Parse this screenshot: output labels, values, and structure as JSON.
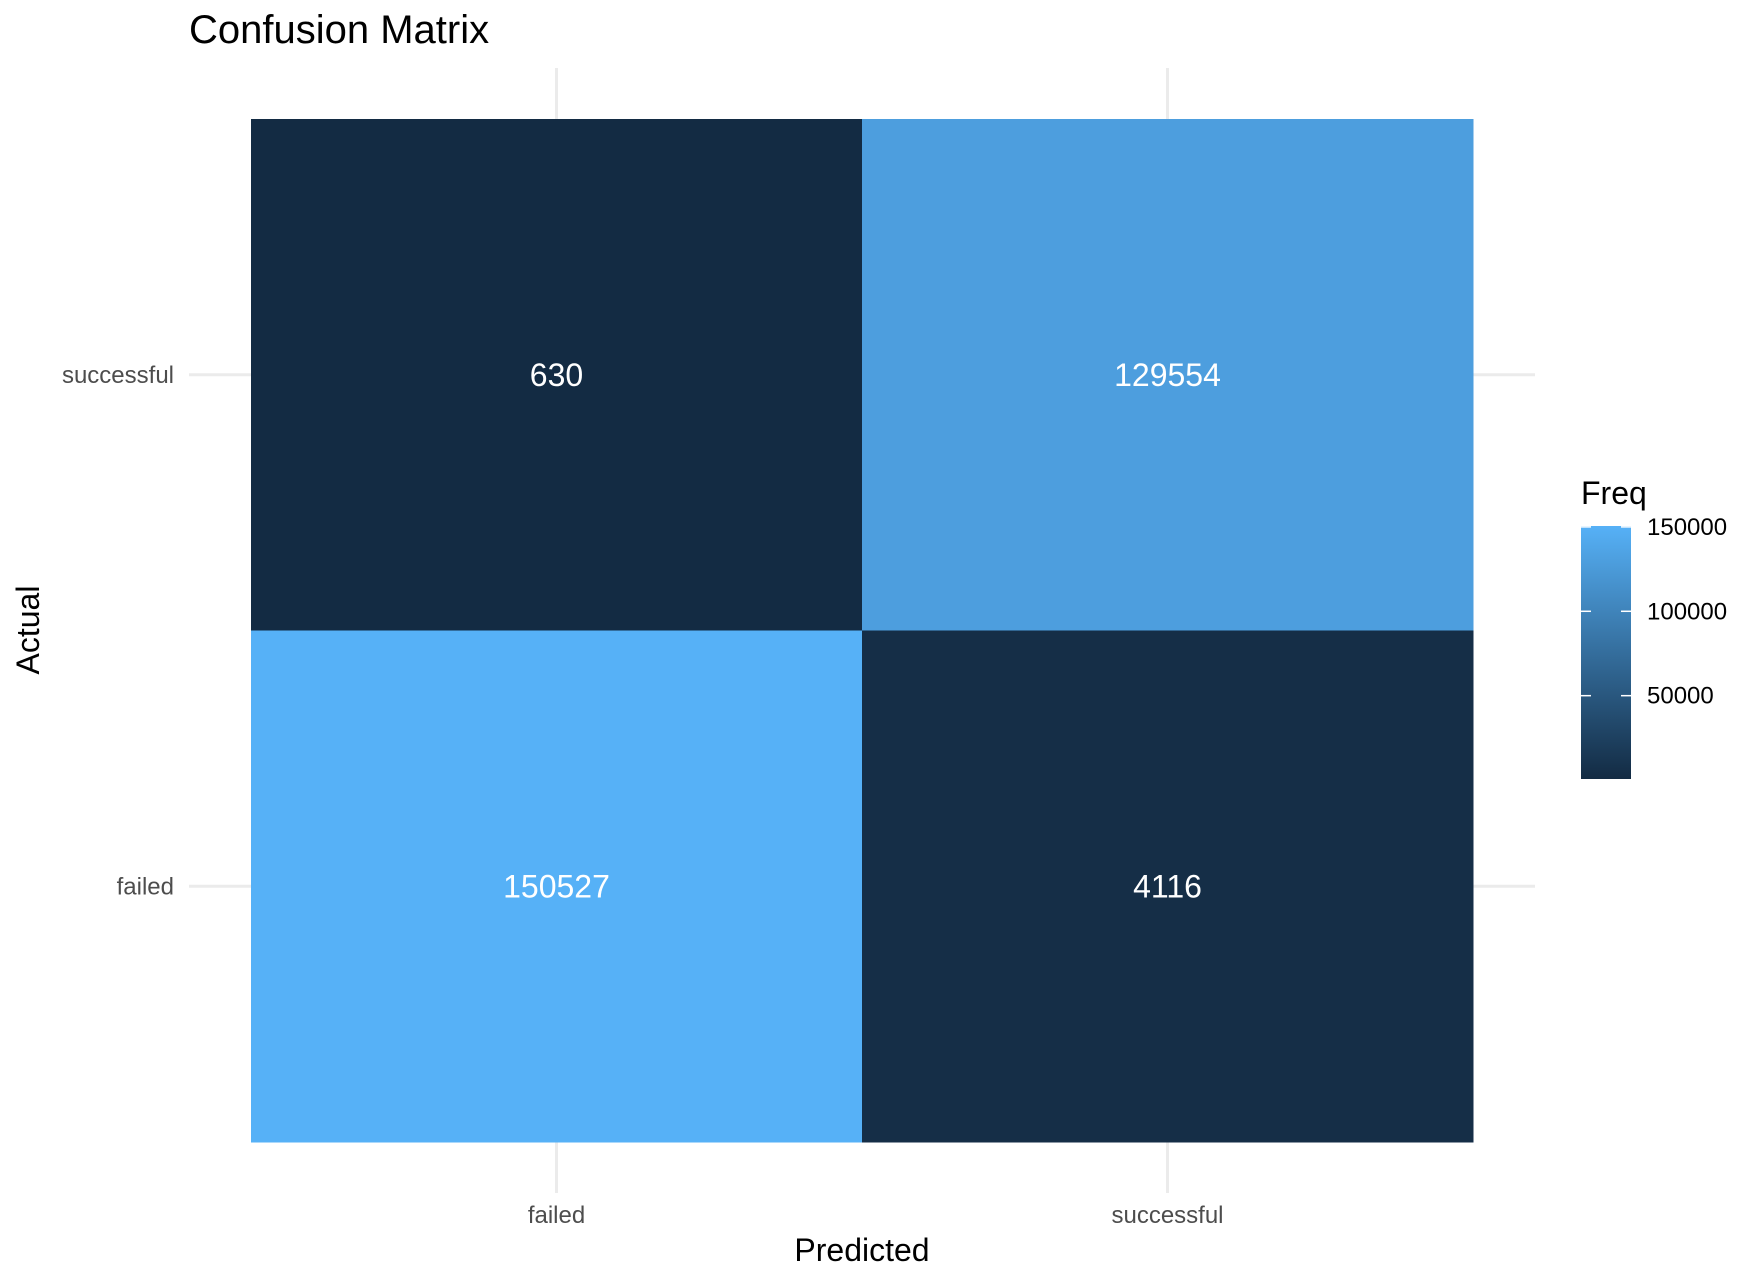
{
  "chart_data": {
    "type": "heatmap",
    "title": "Confusion Matrix",
    "xlabel": "Predicted",
    "ylabel": "Actual",
    "x_categories": [
      "failed",
      "successful"
    ],
    "y_categories": [
      "failed",
      "successful"
    ],
    "cells": [
      {
        "predicted": "failed",
        "actual": "successful",
        "value": 630
      },
      {
        "predicted": "successful",
        "actual": "successful",
        "value": 129554
      },
      {
        "predicted": "failed",
        "actual": "failed",
        "value": 150527
      },
      {
        "predicted": "successful",
        "actual": "failed",
        "value": 4116
      }
    ],
    "legend": {
      "title": "Freq",
      "placement": "right",
      "ticks": [
        50000,
        100000,
        150000
      ],
      "tick_labels": [
        "50000",
        "100000",
        "150000"
      ],
      "range": [
        630,
        150527
      ]
    },
    "colors": {
      "low": "#132b43",
      "high": "#56b1f7",
      "grid": "#ebebeb",
      "cell_text": "#ffffff"
    },
    "grid": true
  }
}
